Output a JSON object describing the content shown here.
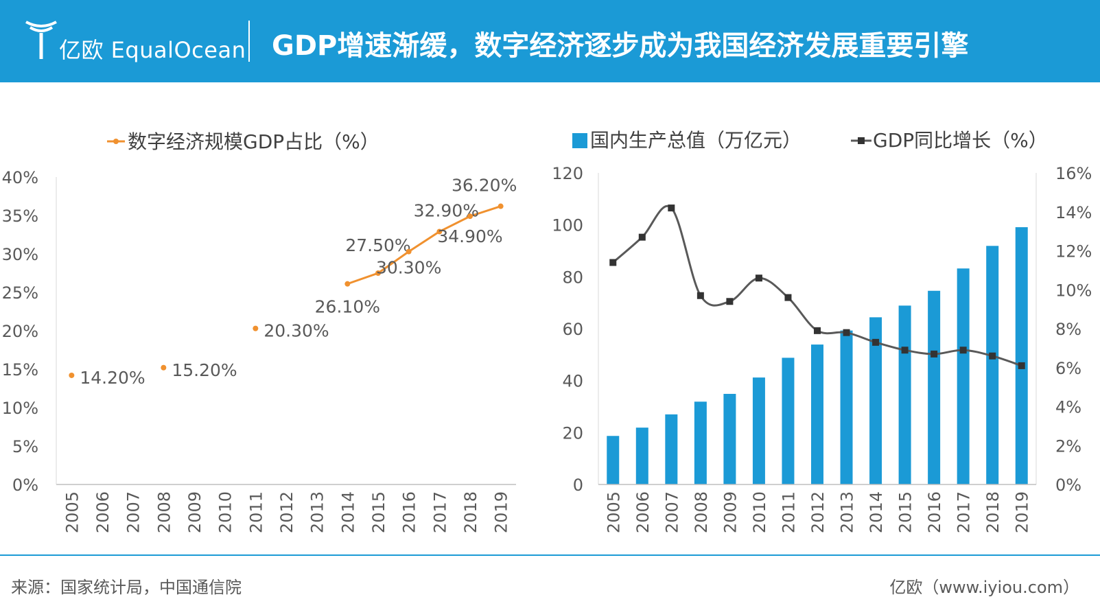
{
  "header": {
    "logo_text": "亿欧 EqualOcean",
    "title": "GDP增速渐缓，数字经济逐步成为我国经济发展重要引擎",
    "logo_color": "#ffffff",
    "background_color": "#1b9ad6"
  },
  "footer": {
    "source": "来源：国家统计局，中国通信院",
    "credit": "亿欧（www.iyiou.com）"
  },
  "chart_data": [
    {
      "type": "line",
      "legend_position": "top",
      "x": [
        "2005",
        "2006",
        "2007",
        "2008",
        "2009",
        "2010",
        "2011",
        "2012",
        "2013",
        "2014",
        "2015",
        "2016",
        "2017",
        "2018",
        "2019"
      ],
      "series": [
        {
          "name": "数字经济规模GDP占比（%）",
          "color": "#f0912f",
          "values": [
            14.2,
            null,
            null,
            15.2,
            null,
            null,
            20.3,
            null,
            null,
            26.1,
            27.5,
            30.3,
            32.9,
            34.9,
            36.2
          ],
          "labels": [
            "14.20%",
            null,
            null,
            "15.20%",
            null,
            null,
            "20.30%",
            null,
            null,
            "26.10%",
            "27.50%",
            "30.30%",
            "32.90%",
            "34.90%",
            "36.20%"
          ]
        }
      ],
      "y_ticks": [
        "0%",
        "5%",
        "10%",
        "15%",
        "20%",
        "25%",
        "30%",
        "35%",
        "40%"
      ],
      "ylim": [
        0,
        40
      ],
      "grid": false
    },
    {
      "type": "bar",
      "legend_position": "top",
      "categories": [
        "2005",
        "2006",
        "2007",
        "2008",
        "2009",
        "2010",
        "2011",
        "2012",
        "2013",
        "2014",
        "2015",
        "2016",
        "2017",
        "2018",
        "2019"
      ],
      "series": [
        {
          "name": "国内生产总值（万亿元）",
          "type": "bar",
          "axis": "left",
          "color": "#1b9ad6",
          "values": [
            18.7,
            21.9,
            27.0,
            31.9,
            34.9,
            41.2,
            48.8,
            53.9,
            59.3,
            64.4,
            68.9,
            74.6,
            83.2,
            91.9,
            99.1
          ]
        },
        {
          "name": "GDP同比增长（%）",
          "type": "line",
          "axis": "right",
          "color": "#595959",
          "marker_color": "#333333",
          "values": [
            11.4,
            12.7,
            14.2,
            9.7,
            9.4,
            10.6,
            9.6,
            7.9,
            7.8,
            7.3,
            6.9,
            6.7,
            6.9,
            6.6,
            6.1
          ]
        }
      ],
      "y_left_ticks": [
        "0",
        "20",
        "40",
        "60",
        "80",
        "100",
        "120"
      ],
      "y_left_lim": [
        0,
        120
      ],
      "y_right_ticks": [
        "0%",
        "2%",
        "4%",
        "6%",
        "8%",
        "10%",
        "12%",
        "14%",
        "16%"
      ],
      "y_right_lim": [
        0,
        16
      ],
      "grid": false
    }
  ]
}
